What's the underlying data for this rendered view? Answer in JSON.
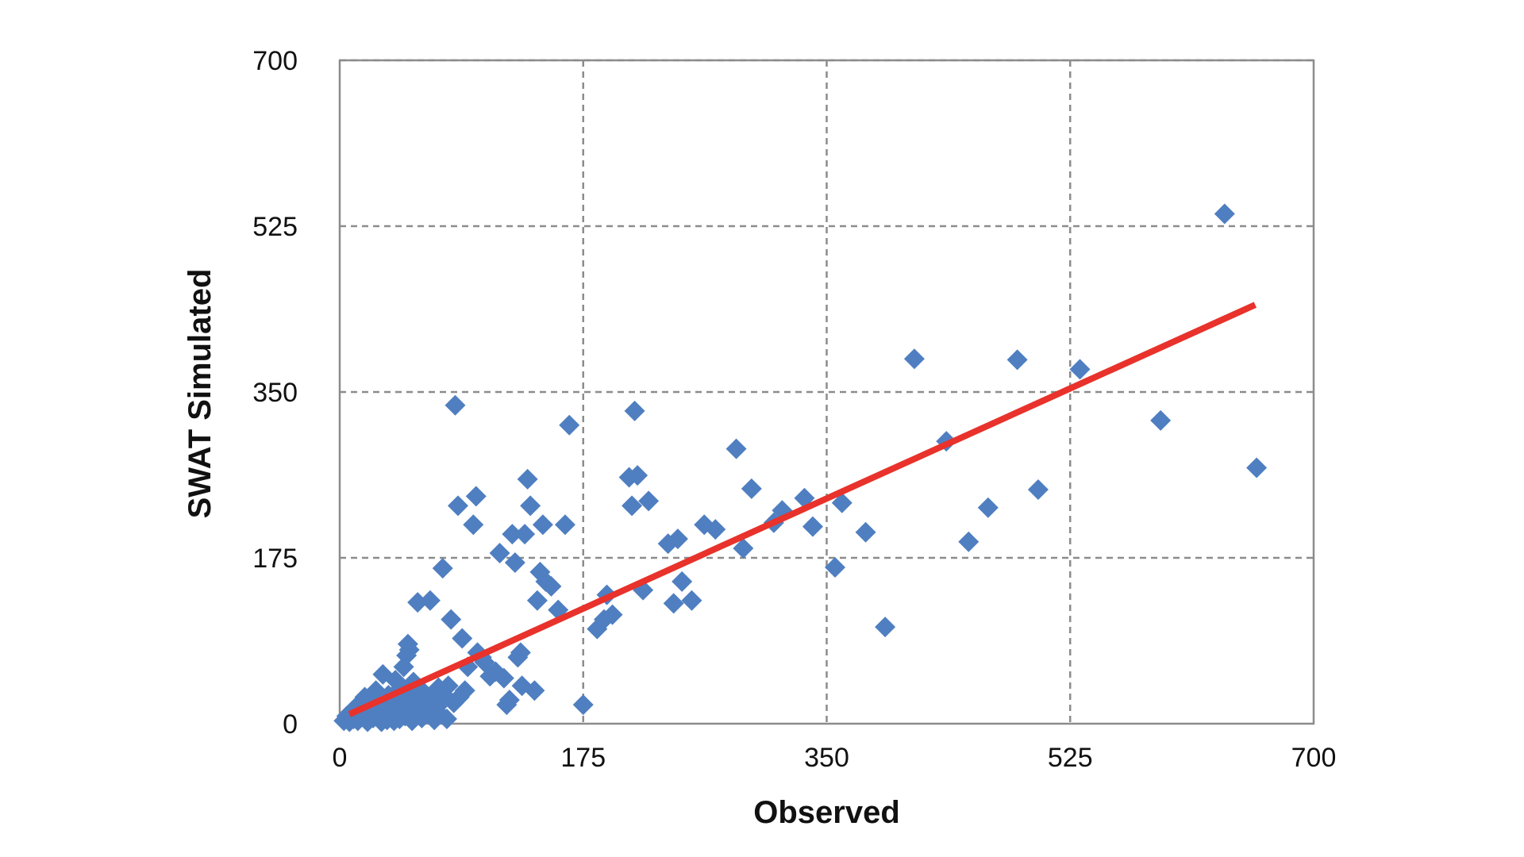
{
  "chart_data": {
    "type": "scatter",
    "xlabel": "Observed",
    "ylabel": "SWAT Simulated",
    "xlim": [
      0,
      700
    ],
    "ylim": [
      0,
      700
    ],
    "xticks": [
      "0",
      "175",
      "350",
      "525",
      "700"
    ],
    "yticks": [
      "0",
      "175",
      "350",
      "525",
      "700"
    ],
    "grid": true,
    "marker": "diamond",
    "colors": {
      "points": "#4f7fc1",
      "trendline": "#e8322b",
      "grid": "#8c8c8c"
    },
    "points": [
      [
        3,
        3
      ],
      [
        5,
        8
      ],
      [
        7,
        2
      ],
      [
        8,
        12
      ],
      [
        10,
        5
      ],
      [
        12,
        18
      ],
      [
        13,
        3
      ],
      [
        15,
        22
      ],
      [
        16,
        8
      ],
      [
        18,
        28
      ],
      [
        20,
        2
      ],
      [
        21,
        14
      ],
      [
        23,
        25
      ],
      [
        24,
        6
      ],
      [
        26,
        35
      ],
      [
        27,
        10
      ],
      [
        29,
        20
      ],
      [
        30,
        2
      ],
      [
        31,
        52
      ],
      [
        32,
        15
      ],
      [
        34,
        4
      ],
      [
        35,
        30
      ],
      [
        36,
        9
      ],
      [
        37,
        22
      ],
      [
        39,
        3
      ],
      [
        40,
        46
      ],
      [
        41,
        12
      ],
      [
        42,
        27
      ],
      [
        43,
        5
      ],
      [
        44,
        38
      ],
      [
        45,
        18
      ],
      [
        46,
        60
      ],
      [
        47,
        8
      ],
      [
        48,
        72
      ],
      [
        49,
        84
      ],
      [
        50,
        78
      ],
      [
        50,
        32
      ],
      [
        51,
        15
      ],
      [
        52,
        3
      ],
      [
        53,
        44
      ],
      [
        54,
        24
      ],
      [
        55,
        10
      ],
      [
        56,
        128
      ],
      [
        57,
        38
      ],
      [
        58,
        20
      ],
      [
        59,
        6
      ],
      [
        60,
        15
      ],
      [
        62,
        30
      ],
      [
        64,
        12
      ],
      [
        65,
        130
      ],
      [
        66,
        25
      ],
      [
        68,
        4
      ],
      [
        70,
        18
      ],
      [
        71,
        38
      ],
      [
        72,
        10
      ],
      [
        74,
        164
      ],
      [
        75,
        30
      ],
      [
        77,
        5
      ],
      [
        78,
        40
      ],
      [
        80,
        110
      ],
      [
        82,
        22
      ],
      [
        83,
        336
      ],
      [
        85,
        230
      ],
      [
        86,
        28
      ],
      [
        88,
        90
      ],
      [
        90,
        35
      ],
      [
        92,
        60
      ],
      [
        96,
        210
      ],
      [
        98,
        240
      ],
      [
        99,
        75
      ],
      [
        102,
        70
      ],
      [
        104,
        65
      ],
      [
        108,
        50
      ],
      [
        112,
        55
      ],
      [
        115,
        180
      ],
      [
        118,
        48
      ],
      [
        120,
        20
      ],
      [
        122,
        25
      ],
      [
        124,
        200
      ],
      [
        126,
        170
      ],
      [
        128,
        70
      ],
      [
        130,
        75
      ],
      [
        131,
        40
      ],
      [
        133,
        200
      ],
      [
        135,
        258
      ],
      [
        137,
        230
      ],
      [
        140,
        35
      ],
      [
        142,
        130
      ],
      [
        144,
        160
      ],
      [
        146,
        210
      ],
      [
        148,
        150
      ],
      [
        152,
        145
      ],
      [
        157,
        120
      ],
      [
        162,
        210
      ],
      [
        165,
        315
      ],
      [
        175,
        20
      ],
      [
        185,
        100
      ],
      [
        190,
        110
      ],
      [
        192,
        136
      ],
      [
        196,
        115
      ],
      [
        208,
        260
      ],
      [
        210,
        230
      ],
      [
        212,
        330
      ],
      [
        214,
        262
      ],
      [
        218,
        141
      ],
      [
        222,
        235
      ],
      [
        236,
        190
      ],
      [
        240,
        127
      ],
      [
        243,
        195
      ],
      [
        246,
        150
      ],
      [
        253,
        130
      ],
      [
        262,
        210
      ],
      [
        270,
        205
      ],
      [
        285,
        290
      ],
      [
        290,
        185
      ],
      [
        296,
        248
      ],
      [
        312,
        212
      ],
      [
        318,
        225
      ],
      [
        334,
        238
      ],
      [
        340,
        208
      ],
      [
        356,
        165
      ],
      [
        361,
        233
      ],
      [
        378,
        202
      ],
      [
        392,
        102
      ],
      [
        413,
        385
      ],
      [
        436,
        298
      ],
      [
        452,
        192
      ],
      [
        466,
        228
      ],
      [
        487,
        384
      ],
      [
        502,
        247
      ],
      [
        532,
        374
      ],
      [
        590,
        320
      ],
      [
        636,
        538
      ],
      [
        659,
        270
      ]
    ],
    "trendline": {
      "x": [
        7,
        658
      ],
      "y": [
        10,
        442
      ]
    }
  }
}
